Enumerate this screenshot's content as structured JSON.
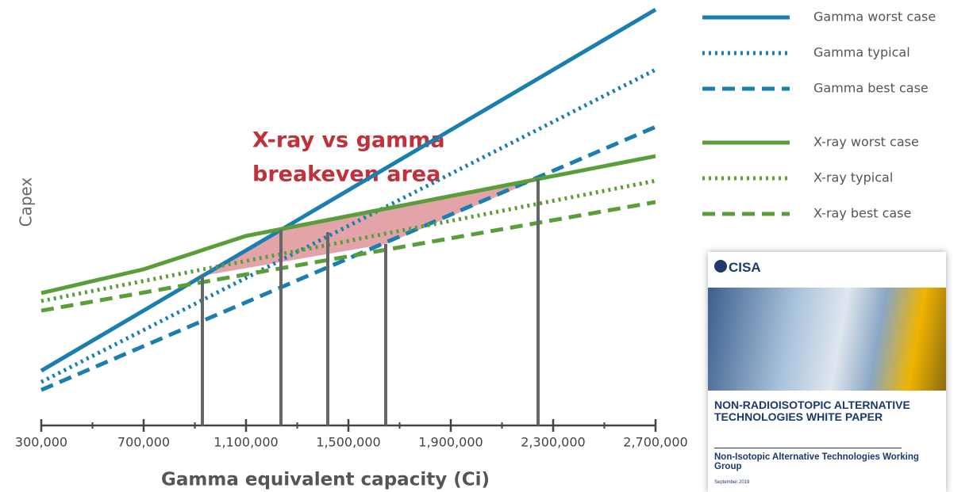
{
  "chart_data": {
    "type": "line",
    "annotation": [
      "X-ray vs gamma",
      "breakeven area"
    ],
    "xlabel": "Gamma equivalent capacity (Ci)",
    "ylabel": "Capex",
    "xlim": [
      300000,
      2700000
    ],
    "xticks": [
      {
        "value": 300000,
        "label": "300,000"
      },
      {
        "value": 700000,
        "label": "700,000"
      },
      {
        "value": 1100000,
        "label": "1,100,000"
      },
      {
        "value": 1500000,
        "label": "1,500,000"
      },
      {
        "value": 1900000,
        "label": "1,900,000"
      },
      {
        "value": 2300000,
        "label": "2,300,000"
      },
      {
        "value": 2700000,
        "label": "2,700,000"
      }
    ],
    "ylim": [
      0,
      100
    ],
    "series": [
      {
        "name": "Gamma worst case",
        "color": "#1a7fae",
        "style": "solid",
        "x": [
          300000,
          2700000
        ],
        "values": [
          13.1,
          99.6
        ]
      },
      {
        "name": "Gamma typical",
        "color": "#1a7fae",
        "style": "dotted",
        "x": [
          300000,
          2700000
        ],
        "values": [
          10.4,
          85.2
        ]
      },
      {
        "name": "Gamma best case",
        "color": "#1a7fae",
        "style": "dashed",
        "x": [
          300000,
          2700000
        ],
        "values": [
          8.5,
          71.5
        ]
      },
      {
        "name": "X-ray worst case",
        "color": "#5a9e3a",
        "style": "solid",
        "x": [
          300000,
          700000,
          1100000,
          2700000
        ],
        "values": [
          31.7,
          37.4,
          45.4,
          64.5
        ]
      },
      {
        "name": "X-ray typical",
        "color": "#5a9e3a",
        "style": "dotted",
        "x": [
          300000,
          2700000
        ],
        "values": [
          29.8,
          58.6
        ]
      },
      {
        "name": "X-ray best case",
        "color": "#5a9e3a",
        "style": "dashed",
        "x": [
          300000,
          2700000
        ],
        "values": [
          27.5,
          53.5
        ]
      }
    ]
  },
  "inset": {
    "logo": "CISA",
    "title": "NON-RADIOISOTOPIC ALTERNATIVE TECHNOLOGIES WHITE PAPER",
    "subtitle": "Non-Isotopic Alternative Technologies Working Group",
    "date": "September 2019"
  }
}
